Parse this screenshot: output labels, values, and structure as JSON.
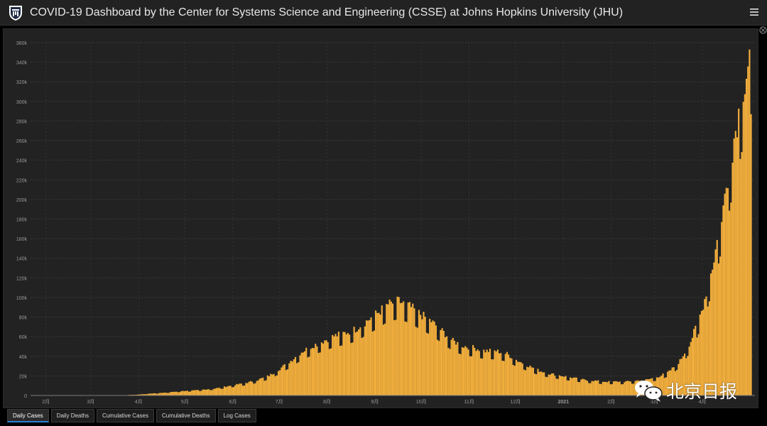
{
  "header": {
    "title": "COVID-19 Dashboard by the Center for Systems Science and Engineering (CSSE) at Johns Hopkins University (JHU)",
    "logo_icon": "jhu-shield-icon",
    "menu_icon": "hamburger-menu-icon"
  },
  "watermark": {
    "text": "北京日报",
    "icon": "wechat-icon"
  },
  "tabs": [
    {
      "label": "Daily Cases",
      "active": true
    },
    {
      "label": "Daily Deaths",
      "active": false
    },
    {
      "label": "Cumulative Cases",
      "active": false
    },
    {
      "label": "Cumulative Deaths",
      "active": false
    },
    {
      "label": "Log Cases",
      "active": false
    }
  ],
  "colors": {
    "bar": "#f0ad3c",
    "background": "#222222",
    "active_tab": "#2d7fd6"
  },
  "chart_data": {
    "type": "bar",
    "title": "",
    "xlabel": "",
    "ylabel": "",
    "ylim": [
      0,
      360000
    ],
    "grid": true,
    "y_ticks": [
      "0",
      "20k",
      "40k",
      "60k",
      "80k",
      "100k",
      "120k",
      "140k",
      "160k",
      "180k",
      "200k",
      "220k",
      "240k",
      "260k",
      "280k",
      "300k",
      "320k",
      "340k",
      "360k"
    ],
    "x_ticks": [
      "2月",
      "3月",
      "4月",
      "5月",
      "6月",
      "7月",
      "8月",
      "9月",
      "10月",
      "11月",
      "12月",
      "2021",
      "2月",
      "3月",
      "4月"
    ],
    "series_note": "daily new cases, approximate weekly readings",
    "weeks": [
      "2020-01-22",
      "2020-01-29",
      "2020-02-05",
      "2020-02-12",
      "2020-02-19",
      "2020-02-26",
      "2020-03-04",
      "2020-03-11",
      "2020-03-18",
      "2020-03-25",
      "2020-04-01",
      "2020-04-08",
      "2020-04-15",
      "2020-04-22",
      "2020-04-29",
      "2020-05-06",
      "2020-05-13",
      "2020-05-20",
      "2020-05-27",
      "2020-06-03",
      "2020-06-10",
      "2020-06-17",
      "2020-06-24",
      "2020-07-01",
      "2020-07-08",
      "2020-07-15",
      "2020-07-22",
      "2020-07-29",
      "2020-08-05",
      "2020-08-12",
      "2020-08-19",
      "2020-08-26",
      "2020-09-02",
      "2020-09-09",
      "2020-09-16",
      "2020-09-23",
      "2020-09-30",
      "2020-10-07",
      "2020-10-14",
      "2020-10-21",
      "2020-10-28",
      "2020-11-04",
      "2020-11-11",
      "2020-11-18",
      "2020-11-25",
      "2020-12-02",
      "2020-12-09",
      "2020-12-16",
      "2020-12-23",
      "2020-12-30",
      "2021-01-06",
      "2021-01-13",
      "2021-01-20",
      "2021-01-27",
      "2021-02-03",
      "2021-02-10",
      "2021-02-17",
      "2021-02-24",
      "2021-03-03",
      "2021-03-10",
      "2021-03-17",
      "2021-03-24",
      "2021-03-31",
      "2021-04-07",
      "2021-04-14",
      "2021-04-21",
      "2021-04-28",
      "2021-05-02"
    ],
    "values": [
      0,
      0,
      0,
      0,
      0,
      0,
      0,
      0,
      0,
      500,
      1000,
      2000,
      2500,
      3500,
      4500,
      5000,
      6000,
      7000,
      9000,
      11000,
      13000,
      16000,
      20000,
      27000,
      35000,
      44000,
      50000,
      55000,
      60000,
      63000,
      67000,
      75000,
      83000,
      92000,
      95000,
      90000,
      82000,
      75000,
      65000,
      55000,
      50000,
      48000,
      45000,
      45000,
      42000,
      35000,
      30000,
      25000,
      22000,
      20000,
      18000,
      16000,
      15000,
      14000,
      14000,
      14000,
      15000,
      16000,
      19000,
      24000,
      35000,
      55000,
      85000,
      130000,
      190000,
      260000,
      320000,
      350000
    ]
  }
}
